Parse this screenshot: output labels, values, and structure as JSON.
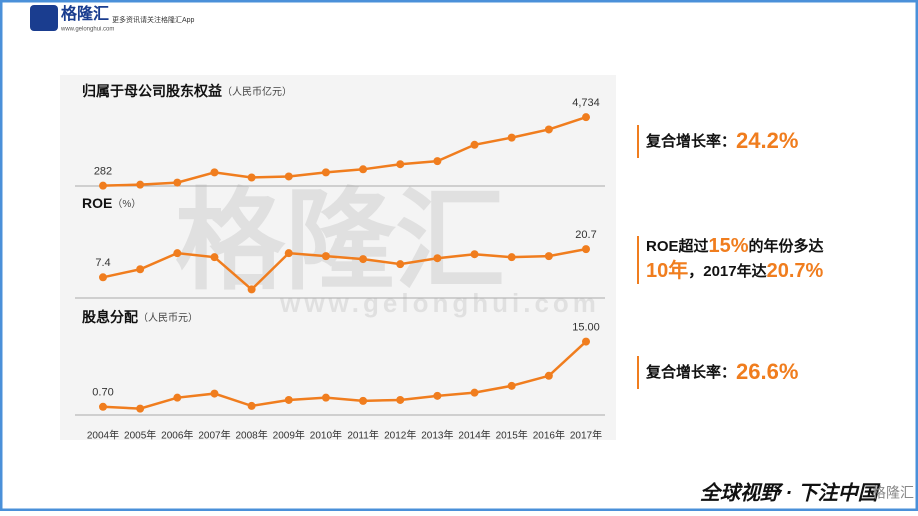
{
  "header": {
    "logo": "格隆汇",
    "url": "www.gelonghui.com",
    "tagline": "更多资讯请关注格隆汇App"
  },
  "watermark": {
    "name": "格隆汇",
    "url": "www.gelonghui.com"
  },
  "chart_data": [
    {
      "type": "line",
      "title": "归属于母公司股东权益",
      "subtitle": "（人民币亿元）",
      "color": "#f07d1e",
      "values": [
        282,
        348,
        481,
        1146,
        813,
        880,
        1146,
        1345,
        1677,
        1877,
        2939,
        3404,
        3935,
        4734
      ],
      "value_labels": [
        "282",
        null,
        null,
        null,
        null,
        null,
        null,
        null,
        null,
        null,
        null,
        null,
        null,
        "4,734"
      ],
      "ylim": [
        0,
        5200
      ]
    },
    {
      "type": "line",
      "title": "ROE",
      "subtitle": "（%）",
      "color": "#f07d1e",
      "values": [
        7.4,
        11.2,
        18.8,
        16.9,
        1.7,
        18.8,
        17.4,
        16.0,
        13.6,
        16.4,
        18.3,
        16.9,
        17.4,
        20.7
      ],
      "value_labels": [
        "7.4",
        null,
        null,
        null,
        null,
        null,
        null,
        null,
        null,
        null,
        null,
        null,
        null,
        "20.7"
      ],
      "ylim": [
        0,
        25
      ]
    },
    {
      "type": "line",
      "title": "股息分配",
      "subtitle": "（人民币元）",
      "color": "#f07d1e",
      "categories": [
        "2004年",
        "2005年",
        "2006年",
        "2007年",
        "2008年",
        "2009年",
        "2010年",
        "2011年",
        "2012年",
        "2013年",
        "2014年",
        "2015年",
        "2016年",
        "2017年"
      ],
      "values": [
        0.7,
        0.3,
        2.7,
        3.6,
        0.9,
        2.2,
        2.7,
        2.0,
        2.2,
        3.1,
        3.8,
        5.3,
        7.5,
        15.0
      ],
      "value_labels": [
        "0.70",
        null,
        null,
        null,
        null,
        null,
        null,
        null,
        null,
        null,
        null,
        null,
        null,
        "15.00"
      ],
      "ylim": [
        0,
        16
      ]
    }
  ],
  "notes": [
    {
      "parts": [
        "复合增长率：",
        "24.2%"
      ]
    },
    {
      "parts": [
        "ROE超过",
        "15%",
        "的年份多达",
        "10年",
        "，2017年达",
        "20.7%"
      ]
    },
    {
      "parts": [
        "复合增长率：",
        "26.6%"
      ]
    }
  ],
  "footer": {
    "slogan": "全球视野 · 下注中国",
    "brand": "格隆汇"
  }
}
